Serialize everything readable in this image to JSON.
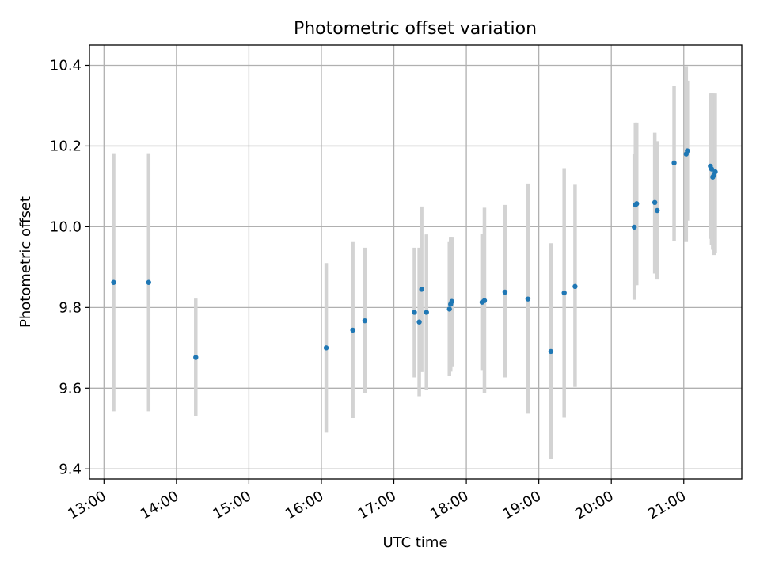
{
  "chart_data": {
    "type": "scatter",
    "title": "Photometric offset variation",
    "xlabel": "UTC time",
    "ylabel": "Photometric offset",
    "grid": true,
    "x_axis": {
      "type": "time",
      "range": [
        "12:48",
        "21:48"
      ],
      "ticks": [
        "13:00",
        "14:00",
        "15:00",
        "16:00",
        "17:00",
        "18:00",
        "19:00",
        "20:00",
        "21:00"
      ]
    },
    "y_axis": {
      "range": [
        9.375,
        10.45
      ],
      "ticks": [
        "9.4",
        "9.6",
        "9.8",
        "10.0",
        "10.2",
        "10.4"
      ]
    },
    "colors": {
      "points": "#1f77b4",
      "error_bars": "#d3d3d3",
      "grid": "#b0b0b0"
    },
    "series": [
      {
        "points": [
          {
            "x": "13:08",
            "y": 9.862,
            "yerr_low": 9.543,
            "yerr_high": 10.182
          },
          {
            "x": "13:37",
            "y": 9.862,
            "yerr_low": 9.543,
            "yerr_high": 10.182
          },
          {
            "x": "14:16",
            "y": 9.676,
            "yerr_low": 9.531,
            "yerr_high": 9.822
          },
          {
            "x": "16:04",
            "y": 9.7,
            "yerr_low": 9.49,
            "yerr_high": 9.91
          },
          {
            "x": "16:26",
            "y": 9.744,
            "yerr_low": 9.526,
            "yerr_high": 9.962
          },
          {
            "x": "16:36",
            "y": 9.767,
            "yerr_low": 9.588,
            "yerr_high": 9.948
          },
          {
            "x": "17:17",
            "y": 9.788,
            "yerr_low": 9.627,
            "yerr_high": 9.948
          },
          {
            "x": "17:21",
            "y": 9.764,
            "yerr_low": 9.58,
            "yerr_high": 9.948
          },
          {
            "x": "17:23",
            "y": 9.845,
            "yerr_low": 9.64,
            "yerr_high": 10.05
          },
          {
            "x": "17:27",
            "y": 9.788,
            "yerr_low": 9.595,
            "yerr_high": 9.981
          },
          {
            "x": "17:46",
            "y": 9.796,
            "yerr_low": 9.63,
            "yerr_high": 9.962
          },
          {
            "x": "17:47",
            "y": 9.808,
            "yerr_low": 9.641,
            "yerr_high": 9.975
          },
          {
            "x": "17:48",
            "y": 9.815,
            "yerr_low": 9.654,
            "yerr_high": 9.975
          },
          {
            "x": "18:13",
            "y": 9.813,
            "yerr_low": 9.645,
            "yerr_high": 9.982
          },
          {
            "x": "18:15",
            "y": 9.817,
            "yerr_low": 9.588,
            "yerr_high": 10.047
          },
          {
            "x": "18:32",
            "y": 9.838,
            "yerr_low": 9.627,
            "yerr_high": 10.054
          },
          {
            "x": "18:51",
            "y": 9.821,
            "yerr_low": 9.537,
            "yerr_high": 10.107
          },
          {
            "x": "19:10",
            "y": 9.691,
            "yerr_low": 9.424,
            "yerr_high": 9.959
          },
          {
            "x": "19:21",
            "y": 9.836,
            "yerr_low": 9.527,
            "yerr_high": 10.145
          },
          {
            "x": "19:30",
            "y": 9.852,
            "yerr_low": 9.603,
            "yerr_high": 10.104
          },
          {
            "x": "20:19",
            "y": 9.999,
            "yerr_low": 9.819,
            "yerr_high": 10.181
          },
          {
            "x": "20:20",
            "y": 10.054,
            "yerr_low": 9.855,
            "yerr_high": 10.258
          },
          {
            "x": "20:21",
            "y": 10.057,
            "yerr_low": 9.855,
            "yerr_high": 10.258
          },
          {
            "x": "20:36",
            "y": 10.06,
            "yerr_low": 9.884,
            "yerr_high": 10.233
          },
          {
            "x": "20:38",
            "y": 10.04,
            "yerr_low": 9.869,
            "yerr_high": 10.212
          },
          {
            "x": "20:52",
            "y": 10.158,
            "yerr_low": 9.965,
            "yerr_high": 10.349
          },
          {
            "x": "21:02",
            "y": 10.18,
            "yerr_low": 9.962,
            "yerr_high": 10.398
          },
          {
            "x": "21:03",
            "y": 10.188,
            "yerr_low": 10.015,
            "yerr_high": 10.362
          },
          {
            "x": "21:22",
            "y": 10.15,
            "yerr_low": 9.97,
            "yerr_high": 10.33
          },
          {
            "x": "21:23",
            "y": 10.143,
            "yerr_low": 9.955,
            "yerr_high": 10.332
          },
          {
            "x": "21:24",
            "y": 10.123,
            "yerr_low": 9.943,
            "yerr_high": 10.33
          },
          {
            "x": "21:25",
            "y": 10.128,
            "yerr_low": 9.93,
            "yerr_high": 10.328
          },
          {
            "x": "21:26",
            "y": 10.136,
            "yerr_low": 9.935,
            "yerr_high": 10.33
          }
        ]
      }
    ]
  }
}
